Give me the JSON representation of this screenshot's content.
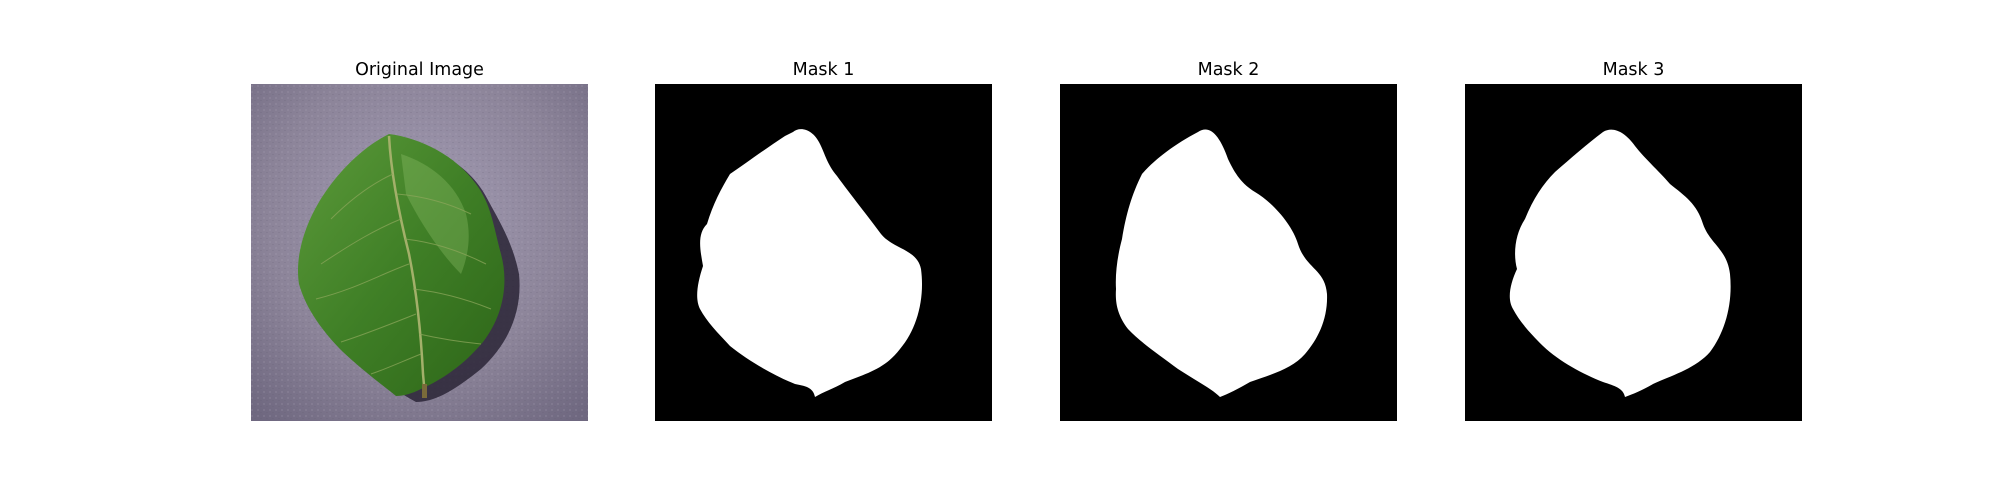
{
  "panels": [
    {
      "title": "Original Image"
    },
    {
      "title": "Mask 1"
    },
    {
      "title": "Mask 2"
    },
    {
      "title": "Mask 3"
    }
  ],
  "colors": {
    "background": "#ffffff",
    "mask_background": "#000000",
    "mask_foreground": "#ffffff",
    "surface": "#8a8299",
    "leaf": "#4a8a2e",
    "leaf_dark": "#2f6a1c",
    "leaf_vein": "#a3b06a",
    "shadow": "#2a2436"
  }
}
